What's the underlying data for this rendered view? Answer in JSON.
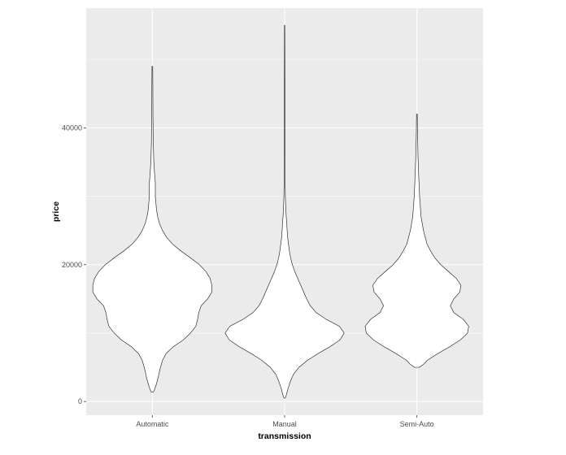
{
  "colors": {
    "panel_background": "#ebebeb",
    "grid_major": "#ffffff",
    "violin_fill": "#ffffff",
    "violin_stroke": "#333333",
    "tick_text": "#4d4d4d",
    "axis_title": "#000000"
  },
  "chart_data": {
    "type": "violin",
    "title": "",
    "xlabel": "transmission",
    "ylabel": "price",
    "ylim": [
      -2000,
      57500
    ],
    "y_ticks": [
      0,
      20000,
      40000
    ],
    "y_tick_labels": [
      "0",
      "20000",
      "40000"
    ],
    "grid": true,
    "legend": "none",
    "categories": [
      "Automatic",
      "Manual",
      "Semi-Auto"
    ],
    "series": [
      {
        "category": "Automatic",
        "min": 1400,
        "max": 49000,
        "profile": [
          [
            1400,
            0.02
          ],
          [
            1800,
            0.04
          ],
          [
            2600,
            0.07
          ],
          [
            3600,
            0.1
          ],
          [
            4800,
            0.13
          ],
          [
            6000,
            0.17
          ],
          [
            7000,
            0.23
          ],
          [
            8000,
            0.35
          ],
          [
            9000,
            0.52
          ],
          [
            10000,
            0.64
          ],
          [
            11000,
            0.73
          ],
          [
            12000,
            0.76
          ],
          [
            13000,
            0.78
          ],
          [
            14000,
            0.82
          ],
          [
            15000,
            0.93
          ],
          [
            16000,
            1.0
          ],
          [
            17000,
            1.0
          ],
          [
            18000,
            0.97
          ],
          [
            19000,
            0.9
          ],
          [
            20000,
            0.79
          ],
          [
            21000,
            0.64
          ],
          [
            22000,
            0.48
          ],
          [
            23000,
            0.34
          ],
          [
            24000,
            0.24
          ],
          [
            25000,
            0.17
          ],
          [
            26000,
            0.12
          ],
          [
            27000,
            0.09
          ],
          [
            28000,
            0.07
          ],
          [
            30000,
            0.05
          ],
          [
            32000,
            0.05
          ],
          [
            33000,
            0.04
          ],
          [
            35000,
            0.025
          ],
          [
            38000,
            0.015
          ],
          [
            42000,
            0.01
          ],
          [
            46000,
            0.008
          ],
          [
            49000,
            0.006
          ]
        ]
      },
      {
        "category": "Manual",
        "min": 500,
        "max": 55000,
        "profile": [
          [
            500,
            0.01
          ],
          [
            1000,
            0.03
          ],
          [
            2000,
            0.06
          ],
          [
            3000,
            0.1
          ],
          [
            4000,
            0.15
          ],
          [
            5000,
            0.24
          ],
          [
            6000,
            0.38
          ],
          [
            7000,
            0.56
          ],
          [
            8000,
            0.76
          ],
          [
            9000,
            0.93
          ],
          [
            10000,
            1.0
          ],
          [
            11000,
            0.92
          ],
          [
            12000,
            0.7
          ],
          [
            13000,
            0.53
          ],
          [
            14000,
            0.43
          ],
          [
            15000,
            0.37
          ],
          [
            16000,
            0.32
          ],
          [
            17000,
            0.27
          ],
          [
            18000,
            0.22
          ],
          [
            19000,
            0.17
          ],
          [
            20000,
            0.13
          ],
          [
            21000,
            0.1
          ],
          [
            22000,
            0.08
          ],
          [
            24000,
            0.05
          ],
          [
            26000,
            0.035
          ],
          [
            28000,
            0.02
          ],
          [
            30000,
            0.012
          ],
          [
            32000,
            0.008
          ],
          [
            36000,
            0.007
          ],
          [
            40000,
            0.006
          ],
          [
            45000,
            0.005
          ],
          [
            50000,
            0.004
          ],
          [
            55000,
            0.003
          ]
        ]
      },
      {
        "category": "Semi-Auto",
        "min": 5000,
        "max": 42000,
        "profile": [
          [
            5000,
            0.04
          ],
          [
            5500,
            0.12
          ],
          [
            6000,
            0.17
          ],
          [
            7000,
            0.35
          ],
          [
            8000,
            0.55
          ],
          [
            9000,
            0.73
          ],
          [
            10000,
            0.85
          ],
          [
            11000,
            0.87
          ],
          [
            12000,
            0.78
          ],
          [
            13000,
            0.62
          ],
          [
            14000,
            0.56
          ],
          [
            15000,
            0.62
          ],
          [
            16000,
            0.72
          ],
          [
            17000,
            0.74
          ],
          [
            18000,
            0.66
          ],
          [
            19000,
            0.53
          ],
          [
            20000,
            0.4
          ],
          [
            21000,
            0.3
          ],
          [
            22000,
            0.23
          ],
          [
            23000,
            0.17
          ],
          [
            25000,
            0.11
          ],
          [
            27000,
            0.07
          ],
          [
            30000,
            0.045
          ],
          [
            33000,
            0.03
          ],
          [
            36000,
            0.018
          ],
          [
            39000,
            0.01
          ],
          [
            42000,
            0.006
          ]
        ]
      }
    ]
  }
}
